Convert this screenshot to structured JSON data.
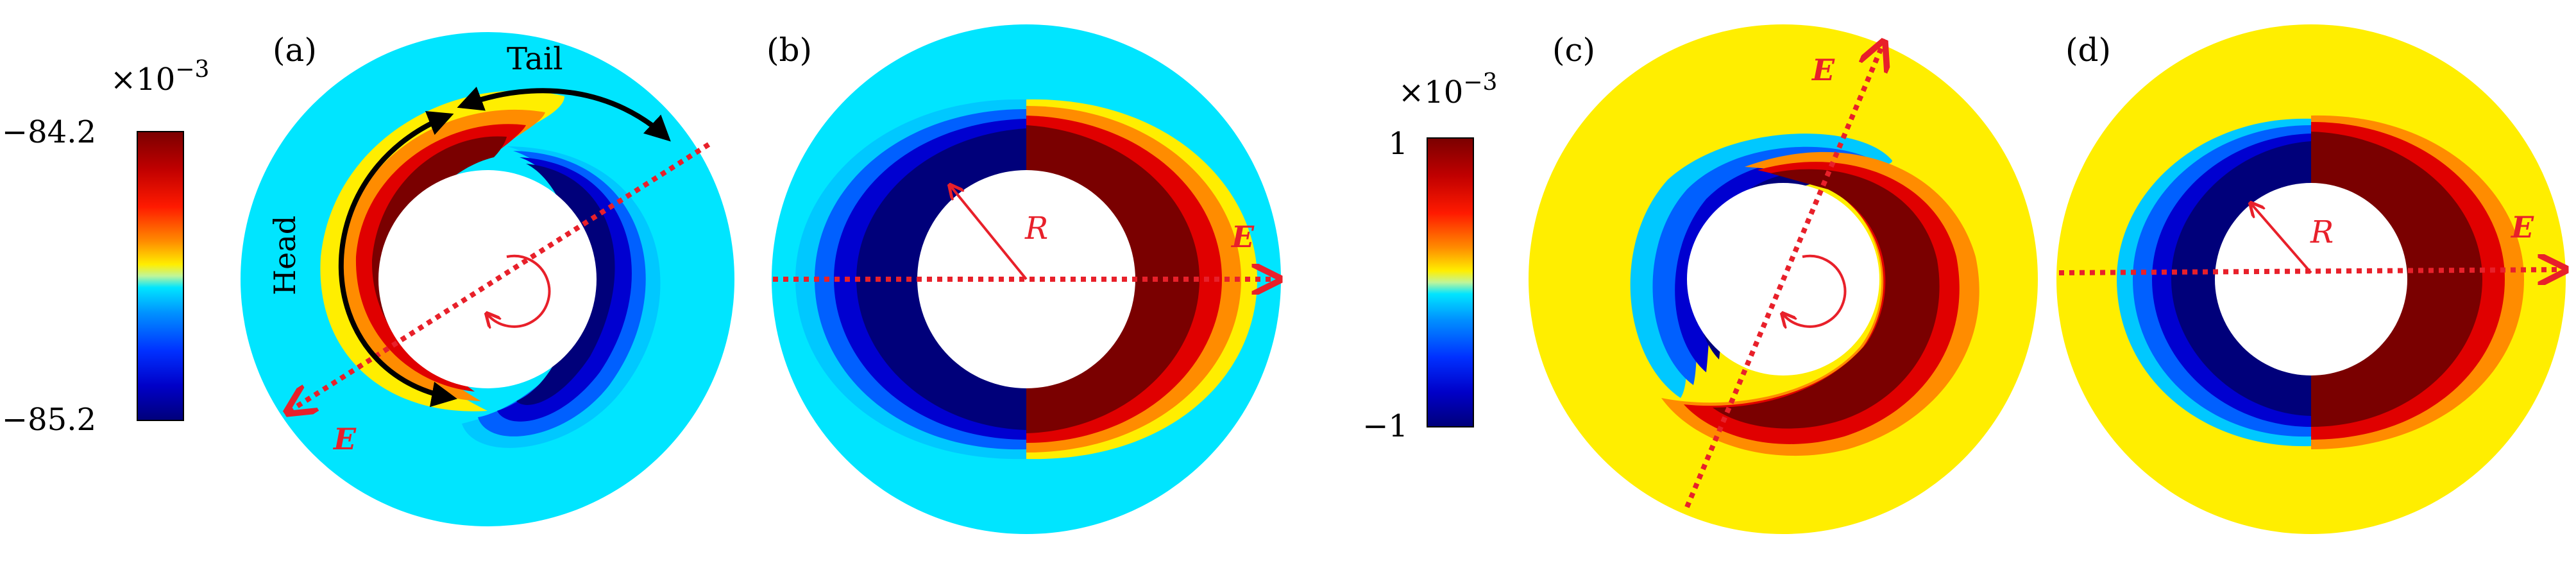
{
  "figure": {
    "colorbar_left": {
      "exponent": "×10",
      "exponent_power": "−3",
      "max_label": "−84.2",
      "min_label": "−85.2"
    },
    "colorbar_right": {
      "exponent": "×10",
      "exponent_power": "−3",
      "max_label": "1",
      "min_label": "−1"
    },
    "panels": [
      {
        "id": "a",
        "label": "(a)",
        "annotations": {
          "tail": "Tail",
          "head": "Head",
          "field": "E"
        }
      },
      {
        "id": "b",
        "label": "(b)",
        "annotations": {
          "radius": "R",
          "field": "E"
        }
      },
      {
        "id": "c",
        "label": "(c)",
        "annotations": {
          "field": "E"
        }
      },
      {
        "id": "d",
        "label": "(d)",
        "annotations": {
          "radius": "R",
          "field": "E"
        }
      }
    ],
    "colors": {
      "dark_red": "#7a0000",
      "red": "#e00000",
      "orange": "#ff8c00",
      "yellow": "#ffee00",
      "cyan": "#00e5ff",
      "blue": "#0030ff",
      "dark_blue": "#00007a",
      "annotation_red": "#e8202a",
      "annotation_black": "#000000"
    }
  }
}
